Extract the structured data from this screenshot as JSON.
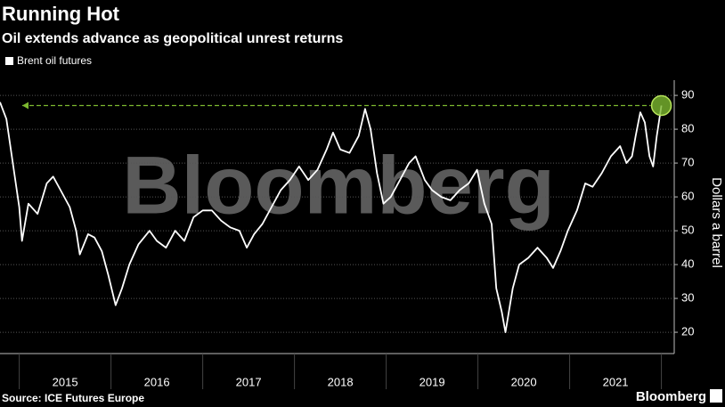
{
  "chart_data": {
    "type": "line",
    "title": "Running Hot",
    "subtitle": "Oil extends advance as geopolitical unrest returns",
    "y_label": "Dollars a barrel",
    "source": "Source: ICE Futures Europe",
    "watermark": "Bloomberg",
    "logo": "Bloomberg",
    "x": [
      2014.79,
      2014.86,
      2014.93,
      2015.0,
      2015.03,
      2015.1,
      2015.2,
      2015.3,
      2015.37,
      2015.45,
      2015.55,
      2015.62,
      2015.66,
      2015.75,
      2015.82,
      2015.9,
      2015.97,
      2016.05,
      2016.12,
      2016.2,
      2016.3,
      2016.42,
      2016.5,
      2016.6,
      2016.7,
      2016.8,
      2016.9,
      2017.0,
      2017.1,
      2017.2,
      2017.3,
      2017.4,
      2017.48,
      2017.56,
      2017.65,
      2017.75,
      2017.85,
      2017.95,
      2018.05,
      2018.15,
      2018.25,
      2018.35,
      2018.42,
      2018.5,
      2018.6,
      2018.7,
      2018.77,
      2018.83,
      2018.9,
      2018.97,
      2019.05,
      2019.15,
      2019.25,
      2019.32,
      2019.42,
      2019.5,
      2019.6,
      2019.7,
      2019.8,
      2019.9,
      2019.99,
      2020.07,
      2020.15,
      2020.2,
      2020.26,
      2020.3,
      2020.38,
      2020.45,
      2020.55,
      2020.65,
      2020.75,
      2020.82,
      2020.9,
      2020.98,
      2021.08,
      2021.17,
      2021.25,
      2021.35,
      2021.45,
      2021.55,
      2021.62,
      2021.68,
      2021.72,
      2021.77,
      2021.82,
      2021.87,
      2021.91,
      2021.95,
      2022.0
    ],
    "series": [
      {
        "name": "Brent oil futures",
        "color": "#ffffff",
        "values": [
          88,
          83,
          70,
          57,
          47,
          58,
          55,
          64,
          66,
          62,
          57,
          50,
          43,
          49,
          48,
          44,
          37,
          28,
          33,
          40,
          46,
          50,
          47,
          45,
          50,
          47,
          54,
          56,
          56,
          53,
          51,
          50,
          45,
          49,
          52,
          57,
          62,
          65,
          69,
          65,
          68,
          74,
          79,
          74,
          73,
          78,
          86,
          80,
          67,
          58,
          60,
          65,
          70,
          72,
          65,
          62,
          60,
          59,
          62,
          64,
          68,
          58,
          52,
          33,
          26,
          20,
          33,
          40,
          42,
          45,
          42,
          39,
          44,
          50,
          56,
          64,
          63,
          67,
          72,
          75,
          70,
          72,
          78,
          85,
          82,
          72,
          69,
          78,
          87
        ]
      }
    ],
    "highlight_color": "#7cb82f",
    "xlim": [
      2014.79,
      2022.14
    ],
    "xticks": [
      {
        "value": 2015.5,
        "label": "2015"
      },
      {
        "value": 2016.5,
        "label": "2016"
      },
      {
        "value": 2017.5,
        "label": "2017"
      },
      {
        "value": 2018.5,
        "label": "2018"
      },
      {
        "value": 2019.5,
        "label": "2019"
      },
      {
        "value": 2020.5,
        "label": "2020"
      },
      {
        "value": 2021.5,
        "label": "2021"
      }
    ],
    "ylim": [
      13.7,
      94.5
    ],
    "yticks": [
      20,
      30,
      40,
      50,
      60,
      70,
      80,
      90
    ],
    "grid": true
  }
}
